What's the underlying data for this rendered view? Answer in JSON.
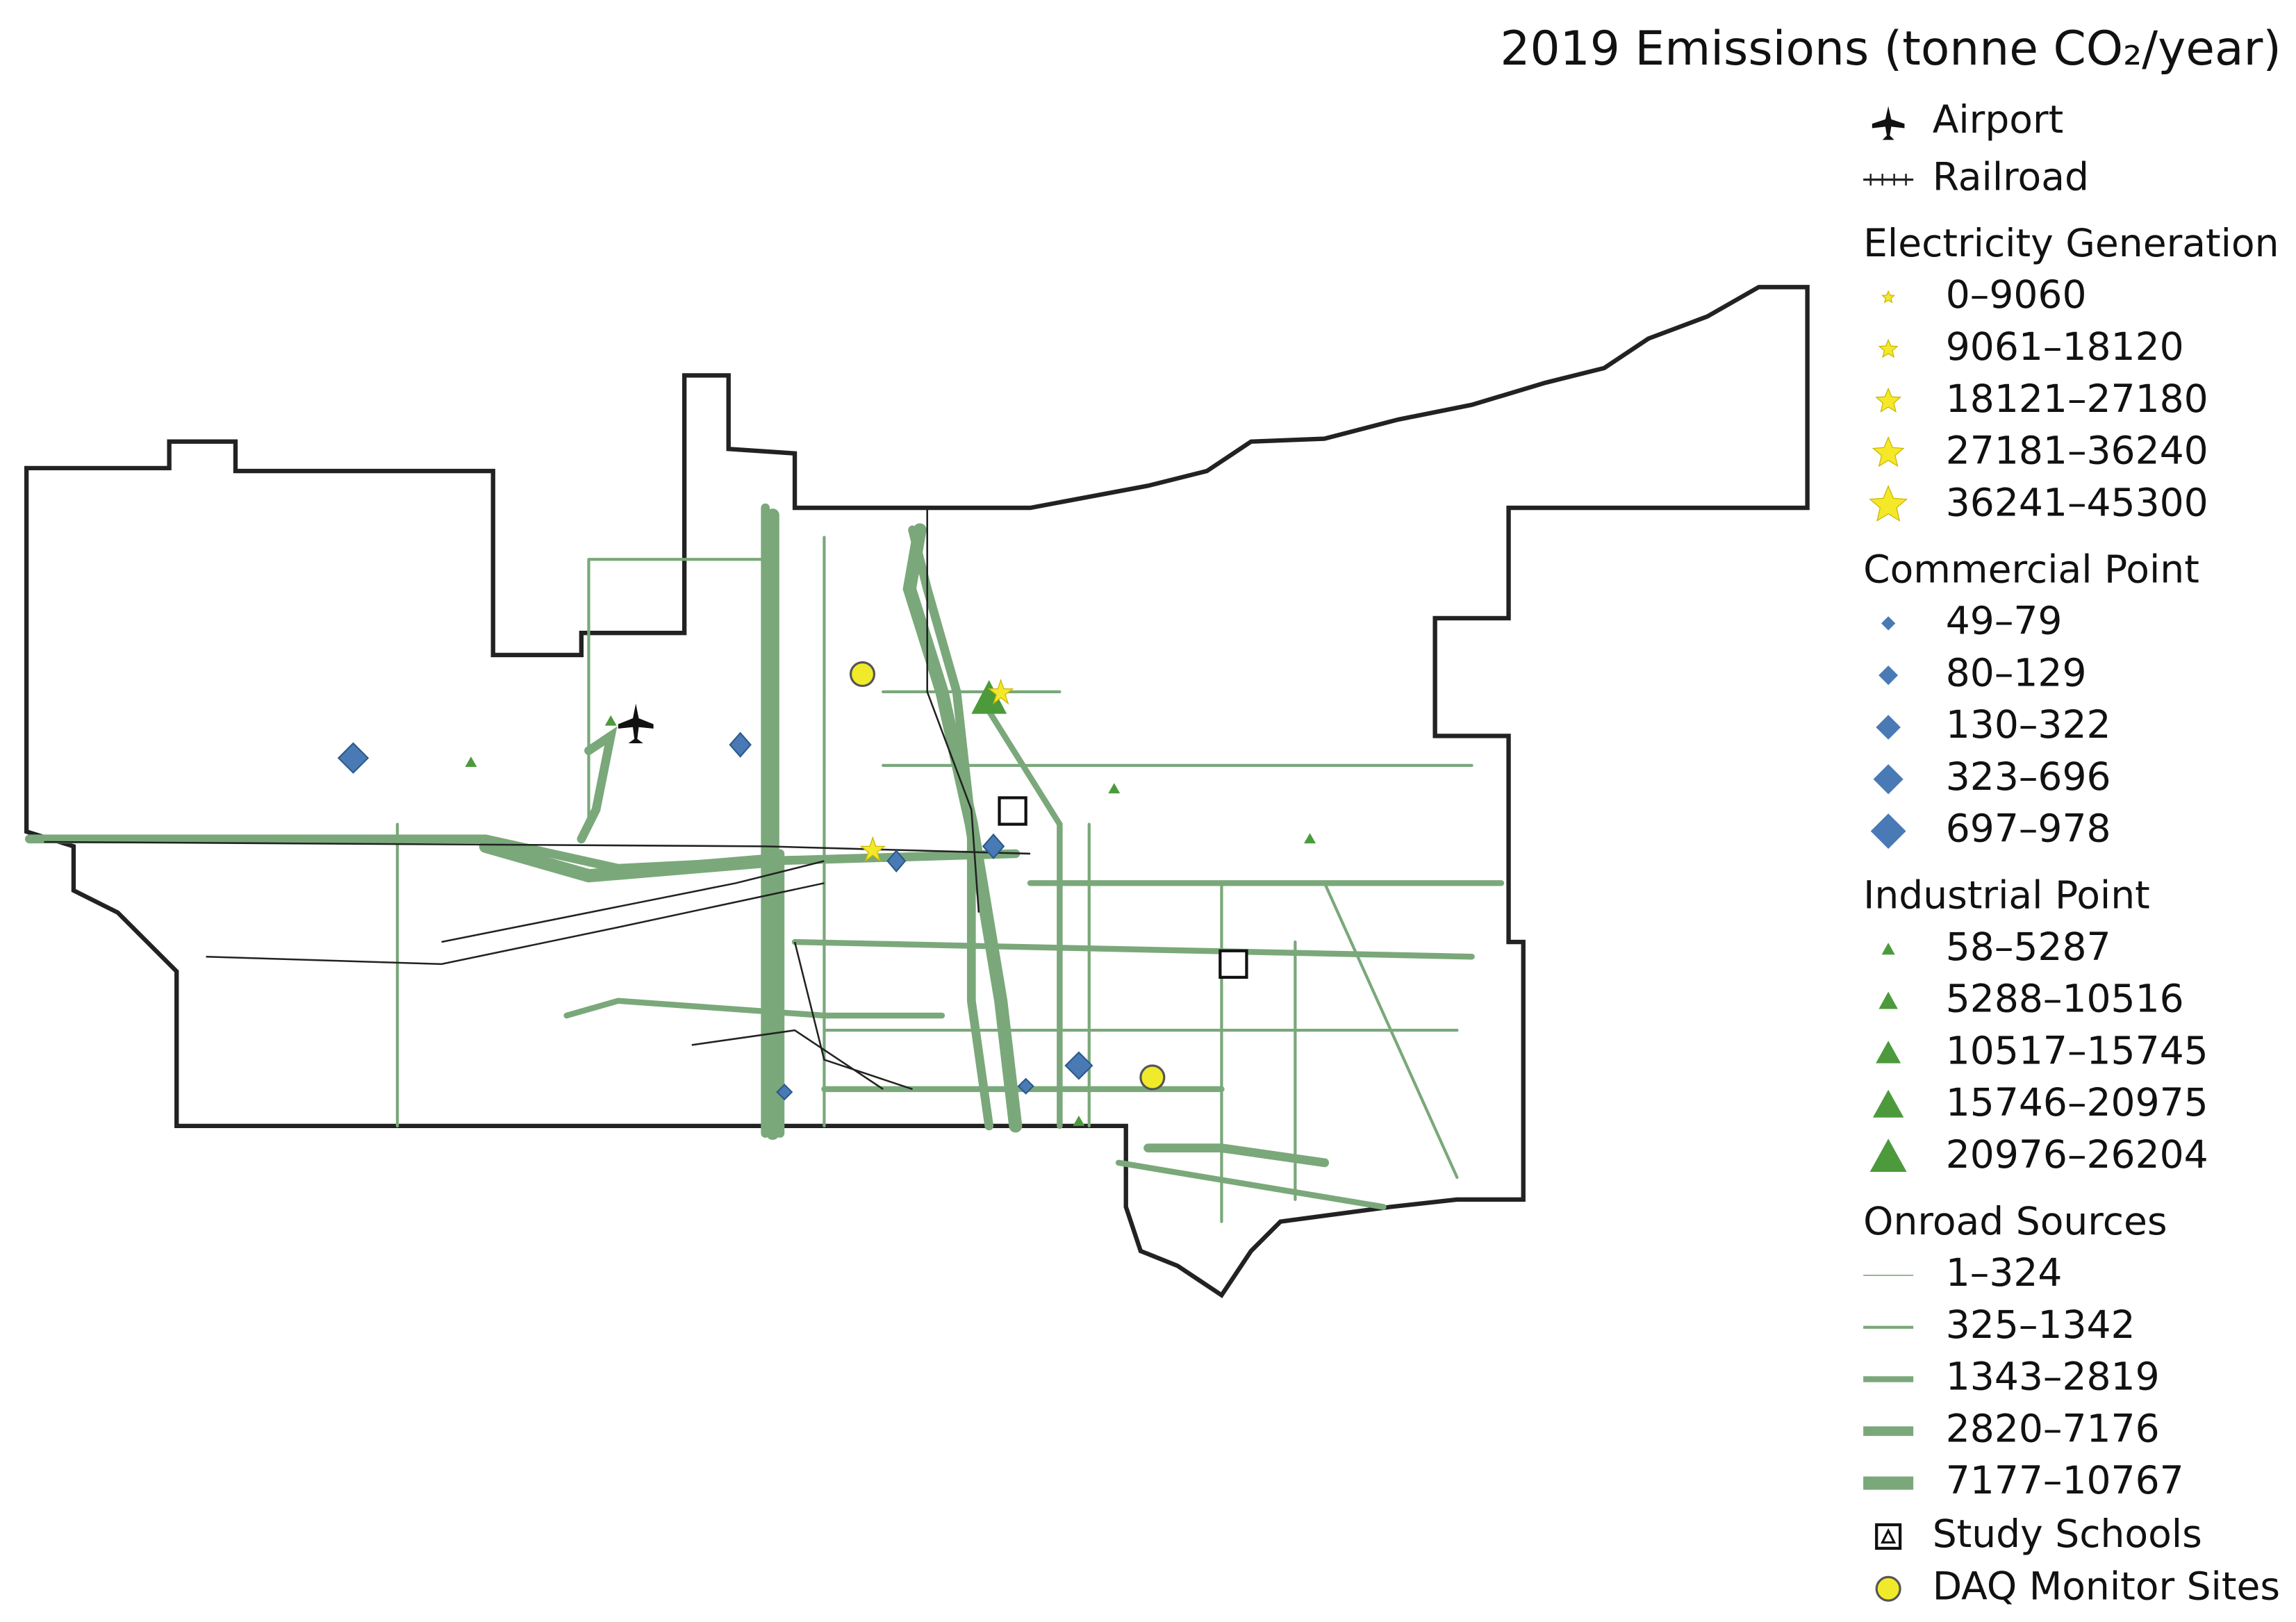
{
  "title": "2019 Emissions (tonne CO₂/year)",
  "legend": {
    "top": [
      "Airport",
      "Railroad"
    ],
    "groups": [
      {
        "title": "Electricity Generation",
        "items": [
          "0–9060",
          "9061–18120",
          "18121–27180",
          "27181–36240",
          "36241–45300"
        ]
      },
      {
        "title": "Commercial Point",
        "items": [
          "49–79",
          "80–129",
          "130–322",
          "323–696",
          "697–978"
        ]
      },
      {
        "title": "Industrial Point",
        "items": [
          "58–5287",
          "5288–10516",
          "10517–15745",
          "15746–20975",
          "20976–26204"
        ]
      },
      {
        "title": "Onroad Sources",
        "items": [
          "1–324",
          "325–1342",
          "1343–2819",
          "2820–7176",
          "7177–10767"
        ]
      }
    ],
    "bottom": [
      "Study Schools",
      "DAQ Monitor Sites"
    ]
  }
}
